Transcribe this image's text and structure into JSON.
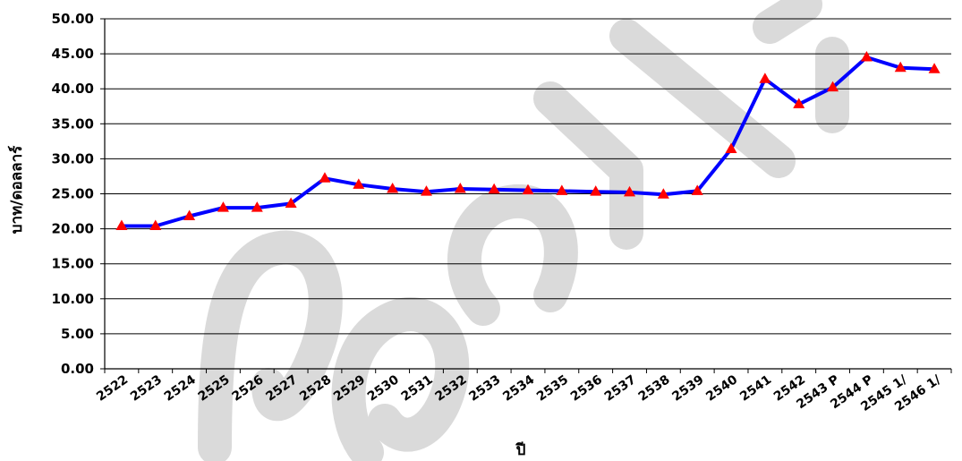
{
  "chart_data": {
    "type": "line",
    "categories": [
      "2522",
      "2523",
      "2524",
      "2525",
      "2526",
      "2527",
      "2528",
      "2529",
      "2530",
      "2531",
      "2532",
      "2533",
      "2534",
      "2535",
      "2536",
      "2537",
      "2538",
      "2539",
      "2540",
      "2541",
      "2542",
      "2543 P",
      "2544 P",
      "2545 1/",
      "2546 1/"
    ],
    "series": [
      {
        "values": [
          20.4,
          20.4,
          21.8,
          23.0,
          23.0,
          23.6,
          27.2,
          26.3,
          25.7,
          25.3,
          25.7,
          25.6,
          25.5,
          25.4,
          25.3,
          25.2,
          24.9,
          25.4,
          31.4,
          41.4,
          37.8,
          40.2,
          44.5,
          43.0,
          42.8
        ],
        "line_color": "#0000ff",
        "marker_color": "#ff0000",
        "marker": "triangle"
      }
    ],
    "xlabel": "ปี",
    "ylabel": "บาท/ดอลลาร์",
    "ylim": [
      0,
      50
    ],
    "yticks": [
      "0.00",
      "5.00",
      "10.00",
      "15.00",
      "20.00",
      "25.00",
      "30.00",
      "35.00",
      "40.00",
      "45.00",
      "50.00"
    ],
    "grid": true
  },
  "colors": {
    "gridline": "#000000",
    "watermark": "#d4d4d4"
  }
}
